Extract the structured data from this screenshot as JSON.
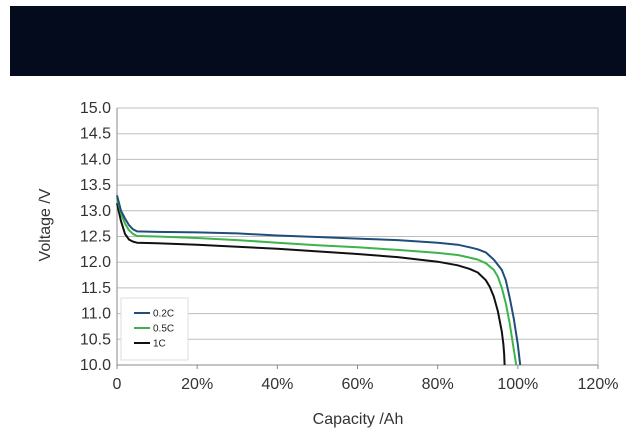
{
  "chart_data": {
    "type": "line",
    "xlabel": "Capacity  /Ah",
    "ylabel": "Voltage  /V",
    "xlim": [
      0,
      120
    ],
    "ylim": [
      10.0,
      15.0
    ],
    "x_tick_labels": [
      "0",
      "20%",
      "40%",
      "60%",
      "80%",
      "100%",
      "120%"
    ],
    "x_tick_values": [
      0,
      20,
      40,
      60,
      80,
      100,
      120
    ],
    "y_tick_labels": [
      "10.0",
      "10.5",
      "11.0",
      "11.5",
      "12.0",
      "12.5",
      "13.0",
      "13.5",
      "14.0",
      "14.5",
      "15.0"
    ],
    "y_tick_values": [
      10.0,
      10.5,
      11.0,
      11.5,
      12.0,
      12.5,
      13.0,
      13.5,
      14.0,
      14.5,
      15.0
    ],
    "grid": true,
    "legend_position": "bottom-left",
    "series": [
      {
        "name": "0.2C",
        "color": "#1f4e79",
        "x": [
          0,
          1,
          2,
          3,
          4,
          5,
          10,
          20,
          30,
          40,
          50,
          60,
          70,
          80,
          85,
          88,
          90,
          92,
          94,
          96,
          97,
          98,
          99,
          100,
          100.6
        ],
        "y": [
          13.3,
          13.0,
          12.85,
          12.72,
          12.64,
          12.6,
          12.59,
          12.58,
          12.56,
          12.52,
          12.49,
          12.46,
          12.43,
          12.38,
          12.34,
          12.29,
          12.25,
          12.19,
          12.05,
          11.85,
          11.65,
          11.3,
          10.9,
          10.4,
          10.0
        ]
      },
      {
        "name": "0.5C",
        "color": "#3cb44b",
        "x": [
          0,
          1,
          2,
          3,
          4,
          5,
          10,
          20,
          30,
          40,
          50,
          60,
          70,
          80,
          85,
          88,
          90,
          92,
          94,
          95,
          96,
          97,
          98,
          99,
          99.6
        ],
        "y": [
          13.25,
          12.95,
          12.75,
          12.62,
          12.55,
          12.51,
          12.5,
          12.47,
          12.43,
          12.38,
          12.33,
          12.29,
          12.24,
          12.18,
          12.14,
          12.09,
          12.05,
          11.98,
          11.85,
          11.72,
          11.5,
          11.2,
          10.8,
          10.3,
          10.0
        ]
      },
      {
        "name": "1C",
        "color": "#111111",
        "x": [
          0,
          1,
          2,
          3,
          4,
          5,
          10,
          20,
          30,
          40,
          50,
          60,
          70,
          80,
          85,
          88,
          90,
          92,
          93,
          94,
          95,
          96,
          96.4,
          96.6,
          96.7
        ],
        "y": [
          13.15,
          12.8,
          12.55,
          12.44,
          12.4,
          12.38,
          12.37,
          12.34,
          12.3,
          12.26,
          12.21,
          12.16,
          12.1,
          12.01,
          11.94,
          11.87,
          11.8,
          11.65,
          11.52,
          11.33,
          11.05,
          10.65,
          10.4,
          10.2,
          10.0
        ]
      }
    ]
  }
}
